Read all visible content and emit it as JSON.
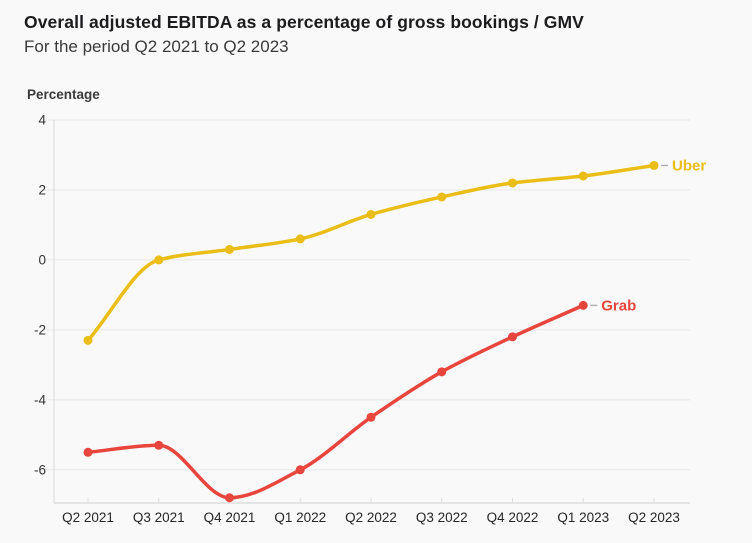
{
  "chart_data": {
    "type": "line",
    "title": "Overall adjusted EBITDA as a percentage of gross bookings / GMV",
    "subtitle": "For the period Q2 2021 to Q2 2023",
    "ylabel": "Percentage",
    "categories": [
      "Q2 2021",
      "Q3 2021",
      "Q4 2021",
      "Q1 2022",
      "Q2 2022",
      "Q3 2022",
      "Q4 2022",
      "Q1 2023",
      "Q2 2023"
    ],
    "y_ticks": [
      4,
      2,
      0,
      -2,
      -4,
      -6
    ],
    "ylim": [
      -6.95,
      4
    ],
    "grid": "horizontal",
    "legend_position": "direct-labels-right",
    "background_color": "#f9f9f9",
    "gridline_color": "#e8e8e8",
    "axis_line_color": "#dcdcdc",
    "baseline_color": "#cfcfcf",
    "tick_label_color": "#333333",
    "label_dash_color": "#b3b3b3",
    "series": [
      {
        "name": "Uber",
        "color": "#EABD17",
        "values": [
          -2.3,
          0.0,
          0.3,
          0.6,
          1.3,
          1.8,
          2.2,
          2.4,
          2.7
        ]
      },
      {
        "name": "Grab",
        "color": "#E8453C",
        "values": [
          -5.5,
          -5.3,
          -6.8,
          -6.0,
          -4.5,
          -3.2,
          -2.2,
          -1.3,
          null
        ]
      }
    ]
  }
}
